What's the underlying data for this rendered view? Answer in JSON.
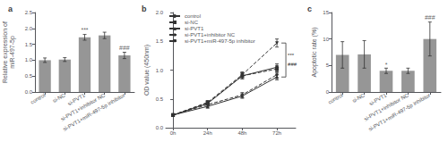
{
  "chart_data": [
    {
      "type": "bar",
      "title": "a",
      "ylabel": "Relative expression of\nmiR-497-5p",
      "categories": [
        "control",
        "si-NC",
        "si-PVT1",
        "si-PVT1+inhibitor NC",
        "si-PVT1+miR-497-5p inhibitor"
      ],
      "values": [
        1.0,
        1.02,
        1.72,
        1.78,
        1.15
      ],
      "errors": [
        0.07,
        0.06,
        0.09,
        0.1,
        0.1
      ],
      "color": "#969696",
      "ylim": [
        0,
        2.5
      ],
      "yticks": [
        {
          "value": 0,
          "label": "0.0"
        },
        0.5,
        {
          "value": 1,
          "label": "1.0"
        },
        1.5,
        {
          "value": 2,
          "label": "2.0"
        },
        2.5
      ],
      "annotations": [
        {
          "x": "si-PVT1",
          "y": 1.84,
          "text": "***"
        },
        {
          "x": "si-PVT1+miR-497-5p inhibitor",
          "y": 1.28,
          "text": "###"
        }
      ],
      "grid": false
    },
    {
      "type": "line",
      "title": "b",
      "ylabel": "OD value (450nm)",
      "x": [
        0,
        24,
        48,
        72
      ],
      "xlim": [
        -5,
        85
      ],
      "xticks": [
        {
          "value": 0,
          "label": "0h"
        },
        {
          "value": 24,
          "label": "24h"
        },
        {
          "value": 48,
          "label": "48h"
        },
        {
          "value": 72,
          "label": "72h"
        }
      ],
      "ylim": [
        0,
        2
      ],
      "yticks": [
        {
          "value": 0,
          "label": "0.0"
        },
        0.5,
        {
          "value": 1,
          "label": "1.0"
        },
        1.5,
        {
          "value": 2,
          "label": "2.0"
        }
      ],
      "color": "#333333",
      "series": [
        {
          "name": "control",
          "values": [
            0.22,
            0.42,
            0.9,
            1.05
          ],
          "errors": [
            0.02,
            0.03,
            0.05,
            0.06
          ],
          "marker": "circle",
          "line_style": "solid"
        },
        {
          "name": "si-NC",
          "values": [
            0.22,
            0.43,
            0.9,
            1.02
          ],
          "errors": [
            0.02,
            0.03,
            0.05,
            0.06
          ],
          "marker": "square",
          "line_style": "dashed"
        },
        {
          "name": "si-PVT1",
          "values": [
            0.22,
            0.37,
            0.55,
            0.88
          ],
          "errors": [
            0.02,
            0.03,
            0.04,
            0.05
          ],
          "marker": "triangle-up",
          "line_style": "solid"
        },
        {
          "name": "si-PVT1+inhibitor NC",
          "values": [
            0.22,
            0.4,
            0.57,
            0.92
          ],
          "errors": [
            0.02,
            0.03,
            0.04,
            0.05
          ],
          "marker": "diamond",
          "line_style": "dashed"
        },
        {
          "name": "si-PVT1+miR-497-5p inhibitor",
          "values": [
            0.22,
            0.44,
            0.92,
            1.47
          ],
          "errors": [
            0.02,
            0.03,
            0.05,
            0.07
          ],
          "marker": "triangle-down",
          "line_style": "dashed"
        }
      ],
      "legend": "upper left",
      "grid": false,
      "bracket": {
        "x": 72,
        "low": 0.88,
        "high": 1.47,
        "texts": [
          "***",
          "###"
        ]
      }
    },
    {
      "type": "bar",
      "title": "c",
      "ylabel": "Apoptotic rate (%)",
      "categories": [
        "control",
        "si-NC",
        "si-PVT1",
        "si-PVT1+inhibitor NC",
        "si-PVT1+miR-497-5p inhibitor"
      ],
      "values": [
        7.0,
        7.1,
        4.0,
        4.0,
        10.0
      ],
      "errors": [
        2.5,
        2.6,
        0.5,
        0.5,
        3.2
      ],
      "color": "#969696",
      "ylim": [
        0,
        15
      ],
      "yticks": [
        0,
        5,
        10,
        15
      ],
      "annotations": [
        {
          "x": "si-PVT1",
          "y": 4.6,
          "text": "*"
        },
        {
          "x": "si-PVT1+miR-497-5p inhibitor",
          "y": 13.5,
          "text": "###"
        }
      ],
      "grid": false
    }
  ]
}
